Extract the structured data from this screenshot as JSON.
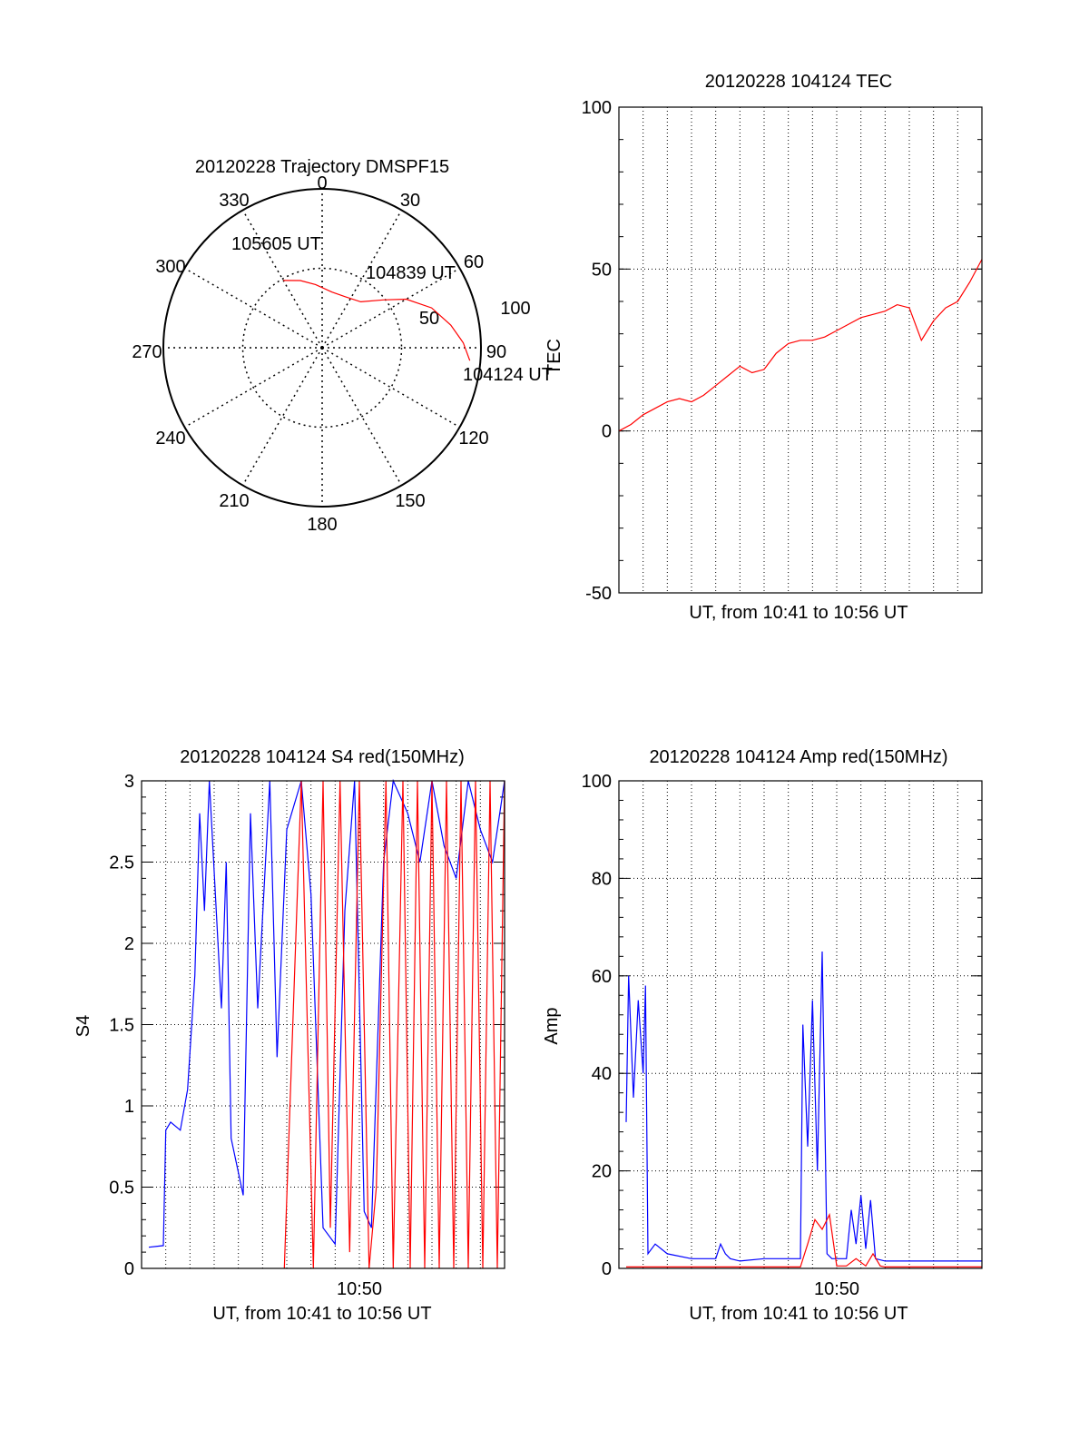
{
  "colors": {
    "red": "#ff0000",
    "blue": "#0000ff",
    "axis": "#000000"
  },
  "chart_data": [
    {
      "type": "polar",
      "title": "20120228 Trajectory DMSPF15",
      "angle_labels": [
        "0",
        "30",
        "60",
        "90",
        "120",
        "150",
        "180",
        "210",
        "240",
        "270",
        "300",
        "330"
      ],
      "radial_labels": [
        "50",
        "100"
      ],
      "side_label": "TEC",
      "track_labels": [
        "105605 UT",
        "104839 UT",
        "104124 UT"
      ],
      "track": [
        {
          "az": 95,
          "zen": 84
        },
        {
          "az": 88,
          "zen": 80
        },
        {
          "az": 80,
          "zen": 74
        },
        {
          "az": 70,
          "zen": 66
        },
        {
          "az": 60,
          "zen": 55
        },
        {
          "az": 52,
          "zen": 44
        },
        {
          "az": 40,
          "zen": 34
        },
        {
          "az": 28,
          "zen": 32
        },
        {
          "az": 10,
          "zen": 32
        },
        {
          "az": -6,
          "zen": 36
        },
        {
          "az": -18,
          "zen": 40
        },
        {
          "az": -30,
          "zen": 44
        }
      ]
    },
    {
      "type": "line",
      "title": "20120228 104124 TEC",
      "xlabel": "UT, from 10:41 to 10:56 UT",
      "ylabel": "",
      "ylim": [
        -50,
        100
      ],
      "yticks": [
        "-50",
        "0",
        "50",
        "100"
      ],
      "xlim": [
        0,
        15
      ],
      "x": [
        0,
        0.5,
        1,
        1.5,
        2,
        2.5,
        3,
        3.5,
        4,
        4.5,
        5,
        5.5,
        6,
        6.5,
        7,
        7.5,
        8,
        8.5,
        9,
        9.5,
        10,
        10.5,
        11,
        11.5,
        12,
        12.5,
        13,
        13.5,
        14,
        14.5,
        15
      ],
      "series": [
        {
          "values": [
            0,
            2,
            5,
            7,
            9,
            10,
            9,
            11,
            14,
            17,
            20,
            18,
            19,
            24,
            27,
            28,
            28,
            29,
            31,
            33,
            35,
            36,
            37,
            39,
            38,
            28,
            34,
            38,
            40,
            46,
            53
          ],
          "color": "red"
        }
      ]
    },
    {
      "type": "line",
      "title": "20120228 104124 S4 red(150MHz)",
      "xlabel": "UT, from 10:41 to 10:56 UT",
      "ylabel": "S4",
      "ylim": [
        0,
        3
      ],
      "yticks": [
        "0",
        "0.5",
        "1",
        "1.5",
        "2",
        "2.5",
        "3"
      ],
      "xticks": [
        "10:50"
      ],
      "xlim": [
        0,
        15
      ],
      "series": [
        {
          "name": "",
          "color": "blue",
          "x": [
            0.3,
            0.9,
            1.0,
            1.2,
            1.6,
            1.9,
            2.2,
            2.4,
            2.6,
            2.8,
            3.3,
            3.5,
            3.7,
            4.2,
            4.5,
            4.8,
            5.3,
            5.6,
            6.0,
            6.6,
            7.0,
            7.5,
            8.0,
            8.4,
            8.8,
            9.2,
            9.5,
            10.0,
            10.4,
            11.0,
            11.5,
            12.0,
            12.5,
            13.0,
            13.5,
            14.0,
            14.5,
            15.0
          ],
          "values": [
            0.13,
            0.14,
            0.85,
            0.9,
            0.85,
            1.1,
            1.8,
            2.8,
            2.2,
            3.0,
            1.6,
            2.5,
            0.8,
            0.45,
            2.8,
            1.6,
            3.0,
            1.3,
            2.7,
            3.0,
            2.3,
            0.25,
            0.15,
            2.2,
            3.0,
            0.35,
            0.25,
            2.5,
            3.0,
            2.8,
            2.5,
            3.0,
            2.6,
            2.4,
            3.0,
            2.7,
            2.5,
            3.0
          ]
        },
        {
          "name": "",
          "color": "red",
          "x": [
            5.9,
            6.6,
            7.1,
            7.5,
            7.8,
            8.2,
            8.6,
            9.0,
            9.4,
            9.7,
            10.1,
            10.4,
            10.8,
            11.1,
            11.4,
            11.7,
            12.0,
            12.3,
            12.6,
            12.9,
            13.2,
            13.5,
            13.8,
            14.1,
            14.4,
            14.7,
            15.0
          ],
          "values": [
            0.0,
            3.0,
            0.0,
            3.0,
            0.25,
            3.0,
            0.1,
            3.0,
            0.0,
            0.5,
            3.0,
            0.0,
            3.0,
            0.0,
            3.0,
            0.0,
            3.0,
            0.0,
            3.0,
            0.0,
            3.0,
            0.0,
            3.0,
            0.0,
            3.0,
            0.0,
            3.0
          ]
        }
      ]
    },
    {
      "type": "line",
      "title": "20120228 104124 Amp red(150MHz)",
      "xlabel": "UT, from 10:41 to 10:56 UT",
      "ylabel": "Amp",
      "ylim": [
        0,
        100
      ],
      "yticks": [
        "0",
        "20",
        "40",
        "60",
        "80",
        "100"
      ],
      "xticks": [
        "10:50"
      ],
      "xlim": [
        0,
        15
      ],
      "series": [
        {
          "name": "",
          "color": "blue",
          "x": [
            0.3,
            0.4,
            0.6,
            0.8,
            1.0,
            1.1,
            1.2,
            1.5,
            2.0,
            3.0,
            4.0,
            4.2,
            4.4,
            4.6,
            5.0,
            6.0,
            7.0,
            7.5,
            7.6,
            7.8,
            8.0,
            8.2,
            8.4,
            8.6,
            8.8,
            9.0,
            9.4,
            9.6,
            9.8,
            10.0,
            10.2,
            10.4,
            10.6,
            11.0,
            12.0,
            13.0,
            14.0,
            15.0
          ],
          "values": [
            30,
            60,
            35,
            55,
            40,
            58,
            3,
            5,
            3,
            2,
            2,
            5,
            3,
            2,
            1.5,
            2,
            2,
            2,
            50,
            25,
            55,
            20,
            65,
            3,
            2,
            2,
            2,
            12,
            5,
            15,
            4,
            14,
            2,
            1.5,
            1.5,
            1.5,
            1.5,
            1.5
          ]
        },
        {
          "name": "",
          "color": "red",
          "x": [
            0.3,
            1.0,
            2.0,
            7.5,
            7.8,
            8.1,
            8.4,
            8.7,
            9.0,
            9.4,
            9.8,
            10.2,
            10.5,
            10.8,
            11.0,
            15.0
          ],
          "values": [
            0.3,
            0.3,
            0.3,
            0.3,
            5,
            10,
            8,
            11,
            0.5,
            0.5,
            2,
            0.5,
            3,
            0.5,
            0.3,
            0.3
          ]
        }
      ]
    }
  ]
}
